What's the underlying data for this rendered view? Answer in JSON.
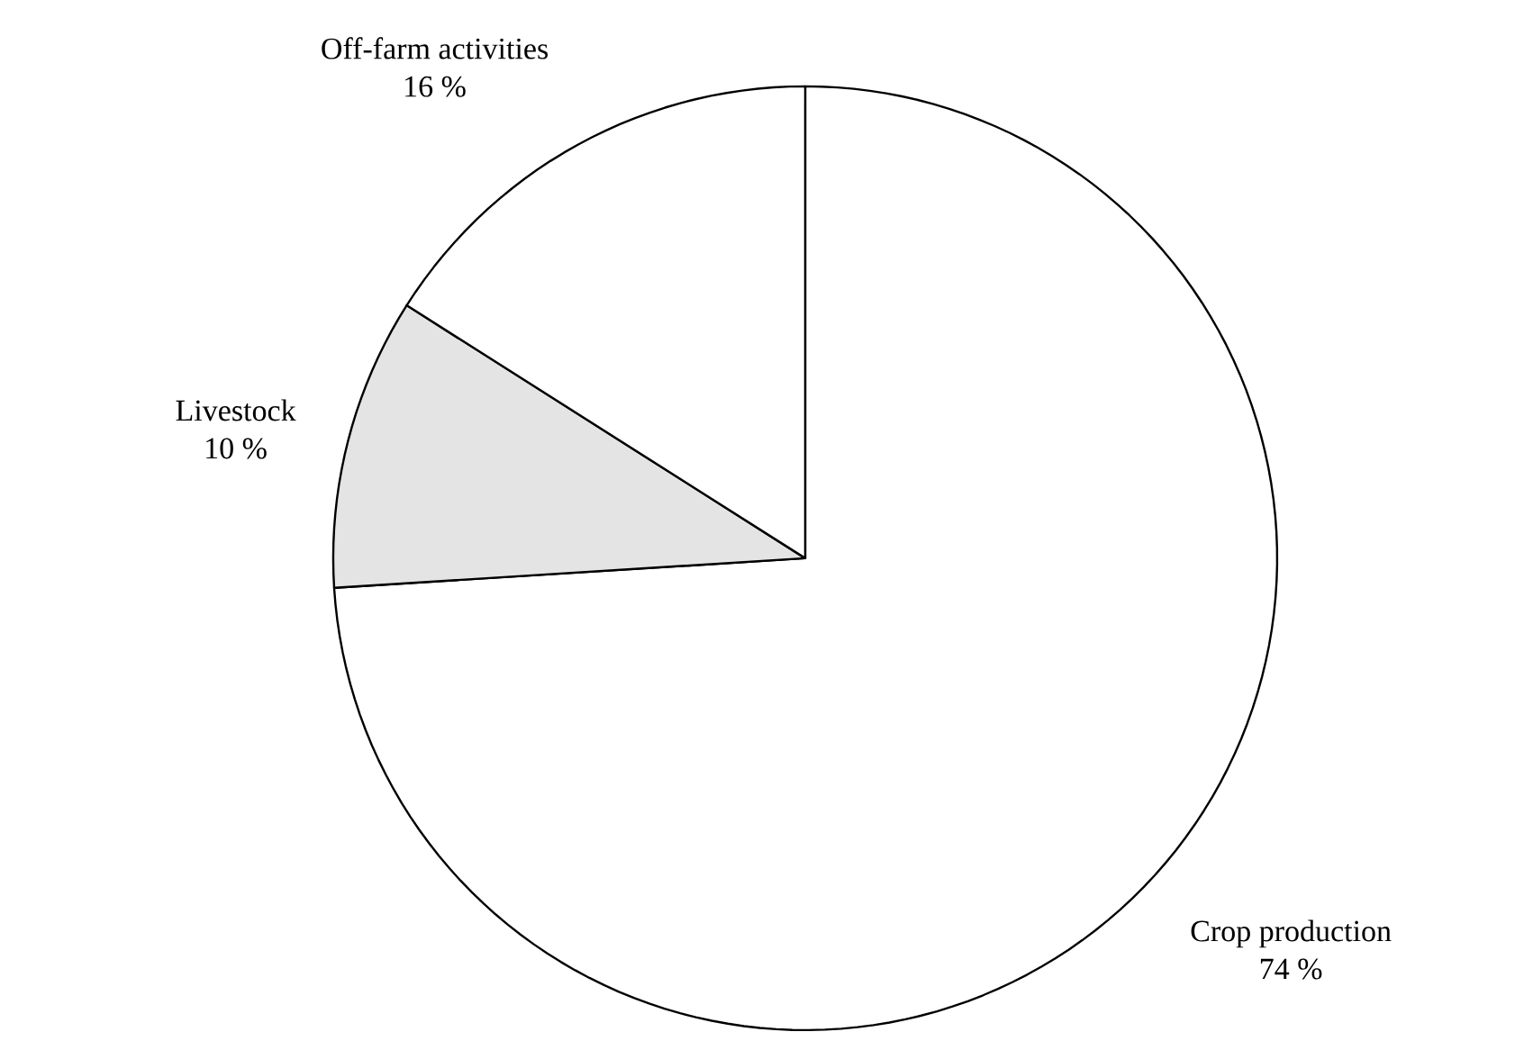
{
  "chart_data": {
    "type": "pie",
    "categories": [
      "Crop production",
      "Livestock",
      "Off-farm activities"
    ],
    "values": [
      74,
      10,
      16
    ],
    "colors": [
      "#ffffff",
      "#e4e4e4",
      "#ffffff"
    ],
    "value_labels": [
      "74 %",
      "10 %",
      "16 %"
    ]
  }
}
